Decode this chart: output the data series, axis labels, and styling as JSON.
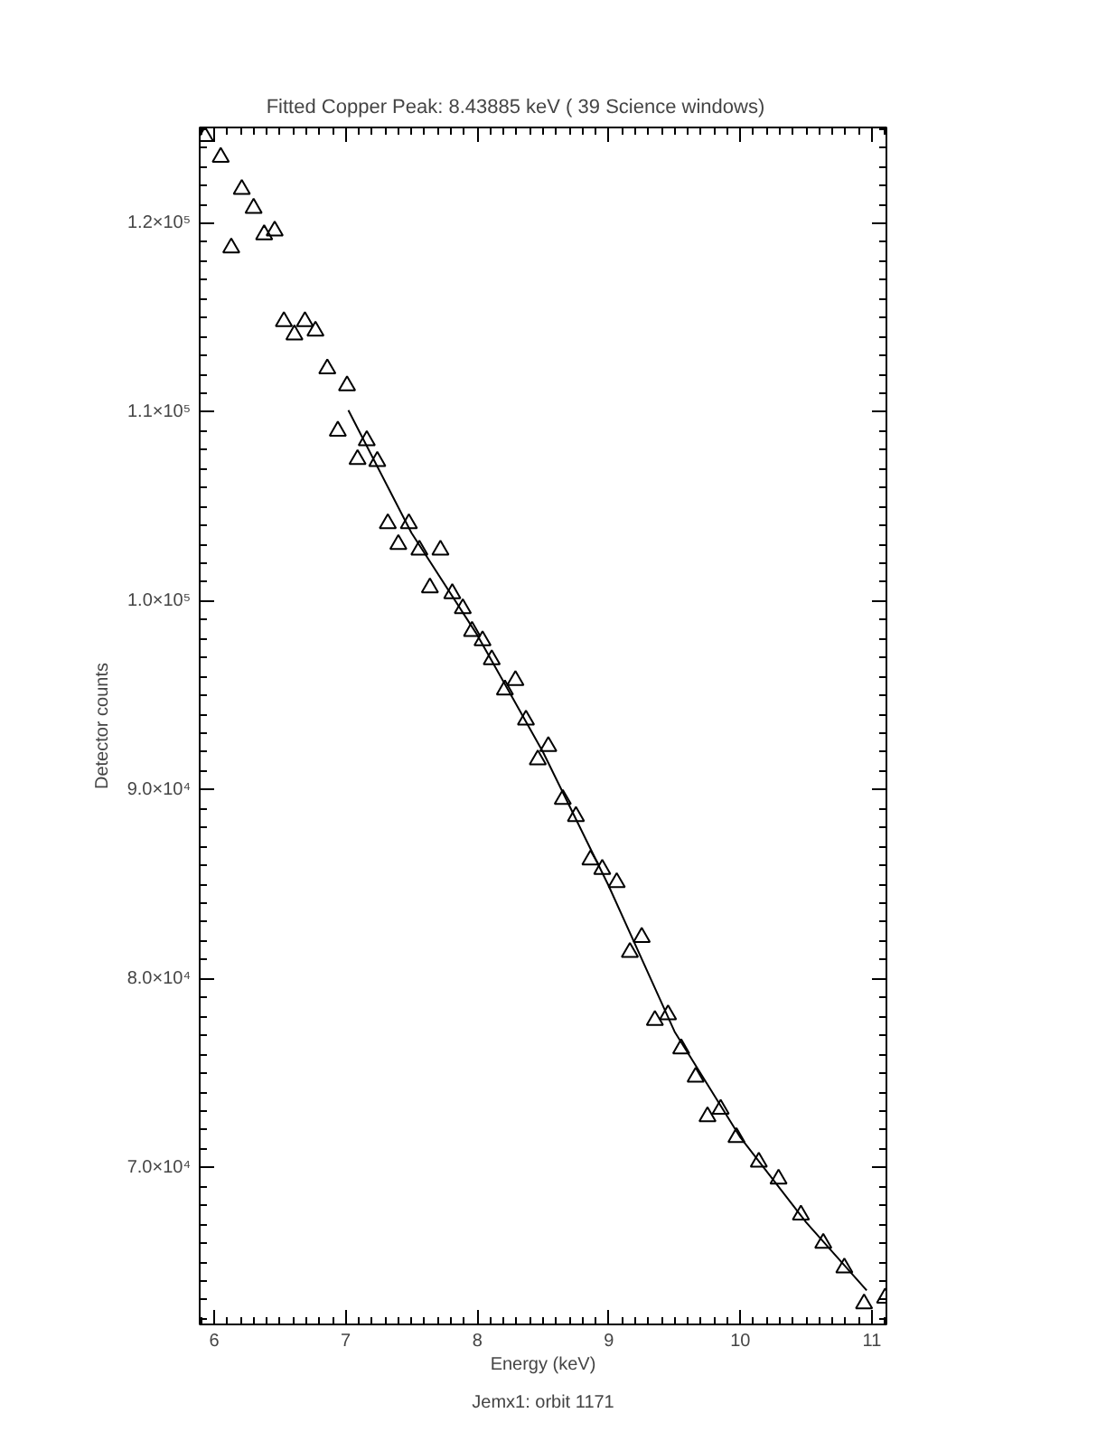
{
  "chart_data": {
    "type": "scatter",
    "title": "Fitted Copper Peak:      8.43885 keV (      39 Science windows)",
    "xlabel": "Energy (keV)",
    "ylabel": "Detector counts",
    "annotations": [
      "Jemx1: orbit 1171"
    ],
    "xlim": [
      5.89,
      11.11
    ],
    "xticks": [
      6,
      7,
      8,
      9,
      10,
      11
    ],
    "ylim": [
      61700,
      125070
    ],
    "yticks": [
      {
        "value": 70000,
        "label": "7.0×10⁴"
      },
      {
        "value": 80000,
        "label": "8.0×10⁴"
      },
      {
        "value": 90000,
        "label": "9.0×10⁴"
      },
      {
        "value": 100000,
        "label": "1.0×10⁵"
      },
      {
        "value": 110000,
        "label": "1.1×10⁵"
      },
      {
        "value": 120000,
        "label": "1.2×10⁵"
      }
    ],
    "grid": false,
    "series": [
      {
        "color": "#000000",
        "marker": "triangle",
        "x": [
          5.93,
          6.05,
          6.13,
          6.21,
          6.3,
          6.38,
          6.46,
          6.53,
          6.61,
          6.69,
          6.77,
          6.86,
          6.94,
          7.01,
          7.09,
          7.16,
          7.24,
          7.32,
          7.4,
          7.48,
          7.56,
          7.64,
          7.72,
          7.81,
          7.89,
          7.96,
          8.04,
          8.11,
          8.21,
          8.29,
          8.37,
          8.46,
          8.54,
          8.65,
          8.75,
          8.86,
          8.95,
          9.06,
          9.16,
          9.25,
          9.35,
          9.45,
          9.55,
          9.66,
          9.75,
          9.85,
          9.97,
          10.14,
          10.29,
          10.46,
          10.63,
          10.79,
          10.94,
          11.1
        ],
        "values": [
          124600,
          123500,
          118700,
          121800,
          120800,
          119400,
          119600,
          114800,
          114100,
          114800,
          114300,
          112300,
          109000,
          111400,
          107500,
          108500,
          107400,
          104100,
          103000,
          104100,
          102700,
          100700,
          102700,
          100400,
          99600,
          98400,
          97900,
          96900,
          95300,
          95800,
          93700,
          91600,
          92300,
          89500,
          88600,
          86300,
          85800,
          85100,
          81400,
          82200,
          77800,
          78100,
          76300,
          74800,
          72700,
          73100,
          71600,
          70300,
          69400,
          67500,
          66000,
          64700,
          62800,
          63100
        ]
      },
      {
        "type": "line",
        "color": "#000000",
        "line_style": "solid",
        "x": [
          7.02,
          7.5,
          8.0,
          8.5,
          9.0,
          9.5,
          10.0,
          10.5,
          10.96
        ],
        "values": [
          110100,
          103600,
          98200,
          92000,
          84900,
          77200,
          71600,
          67100,
          63500
        ]
      }
    ]
  }
}
